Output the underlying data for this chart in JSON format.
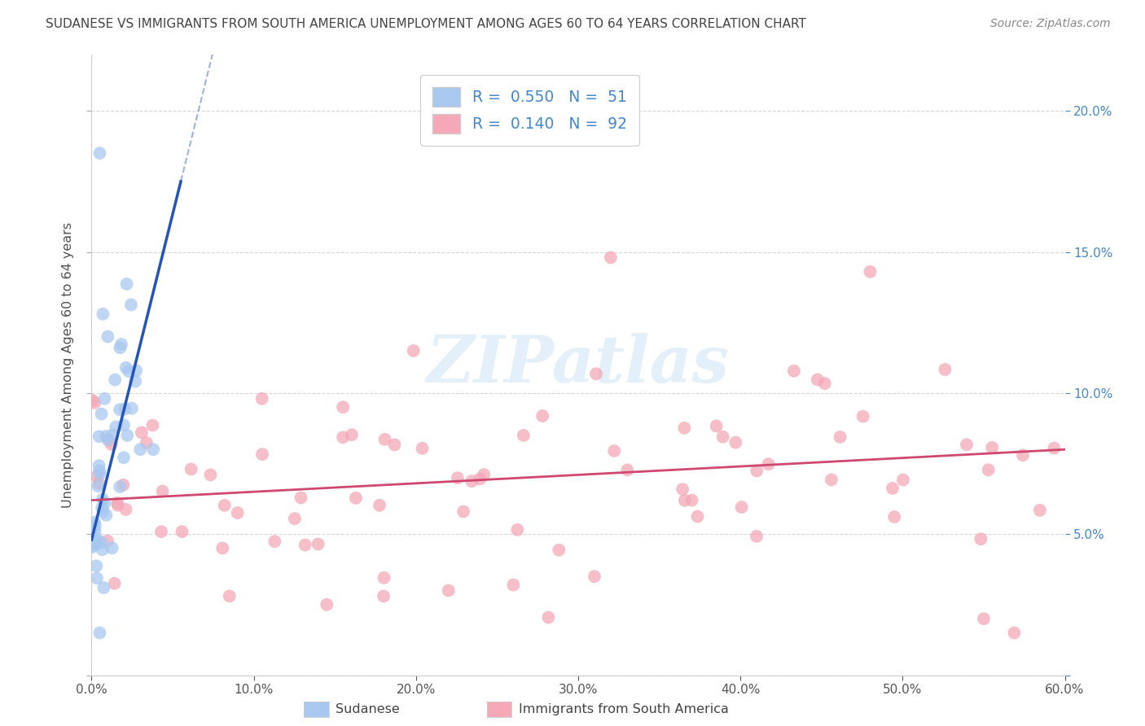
{
  "title": "SUDANESE VS IMMIGRANTS FROM SOUTH AMERICA UNEMPLOYMENT AMONG AGES 60 TO 64 YEARS CORRELATION CHART",
  "source": "Source: ZipAtlas.com",
  "ylabel": "Unemployment Among Ages 60 to 64 years",
  "x_range": [
    0.0,
    0.6
  ],
  "y_range": [
    0.0,
    0.22
  ],
  "sudanese_R": 0.55,
  "sudanese_N": 51,
  "south_america_R": 0.14,
  "south_america_N": 92,
  "sudanese_color": "#a8c8f0",
  "south_america_color": "#f4a8b8",
  "sudanese_line_color": "#2255bb",
  "south_america_line_color": "#d04870",
  "legend_label_1": "Sudanese",
  "legend_label_2": "Immigrants from South America",
  "sud_line_x0": 0.0,
  "sud_line_y0": 0.048,
  "sud_line_x1": 0.055,
  "sud_line_y1": 0.175,
  "sa_line_x0": 0.0,
  "sa_line_y0": 0.062,
  "sa_line_x1": 0.6,
  "sa_line_y1": 0.08
}
